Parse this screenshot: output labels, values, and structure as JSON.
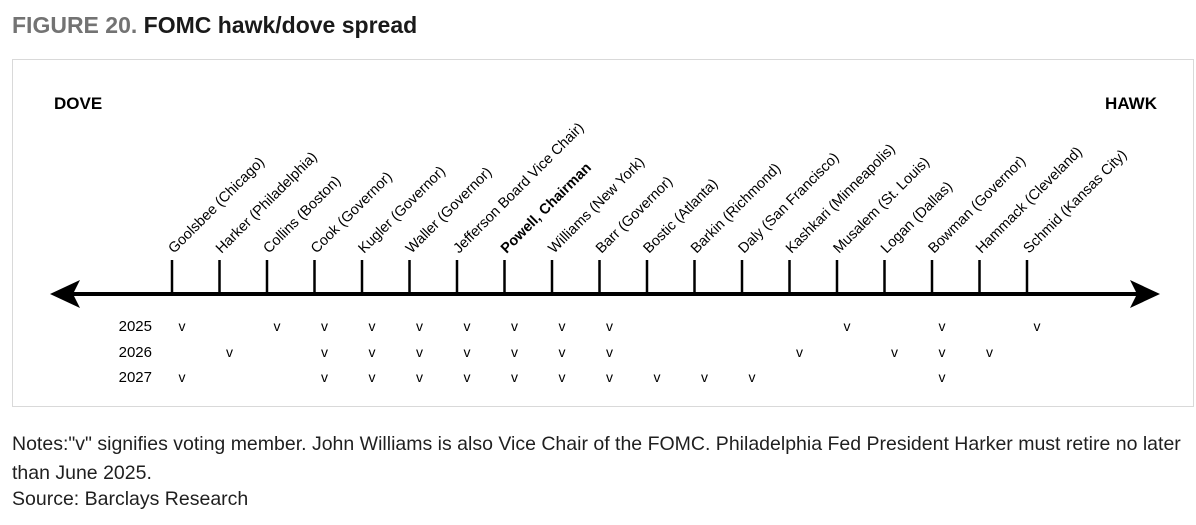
{
  "figure": {
    "label": "FIGURE 20.",
    "title": "FOMC hawk/dove spread"
  },
  "chart_data": {
    "type": "diagram",
    "left_label": "DOVE",
    "right_label": "HAWK",
    "years": [
      "2025",
      "2026",
      "2027"
    ],
    "vote_mark": "v",
    "members": [
      {
        "name": "Goolsbee (Chicago)",
        "bold": false,
        "votes": [
          "2025",
          "2027"
        ]
      },
      {
        "name": "Harker (Philadelphia)",
        "bold": false,
        "votes": [
          "2026"
        ]
      },
      {
        "name": "Collins (Boston)",
        "bold": false,
        "votes": [
          "2025"
        ]
      },
      {
        "name": "Cook (Governor)",
        "bold": false,
        "votes": [
          "2025",
          "2026",
          "2027"
        ]
      },
      {
        "name": "Kugler (Governor)",
        "bold": false,
        "votes": [
          "2025",
          "2026",
          "2027"
        ]
      },
      {
        "name": "Waller (Governor)",
        "bold": false,
        "votes": [
          "2025",
          "2026",
          "2027"
        ]
      },
      {
        "name": "Jefferson Board Vice Chair)",
        "bold": false,
        "votes": [
          "2025",
          "2026",
          "2027"
        ]
      },
      {
        "name": "Powell, Chairman",
        "bold": true,
        "votes": [
          "2025",
          "2026",
          "2027"
        ]
      },
      {
        "name": "Williams (New York)",
        "bold": false,
        "votes": [
          "2025",
          "2026",
          "2027"
        ]
      },
      {
        "name": "Barr (Governor)",
        "bold": false,
        "votes": [
          "2025",
          "2026",
          "2027"
        ]
      },
      {
        "name": "Bostic (Atlanta)",
        "bold": false,
        "votes": [
          "2027"
        ]
      },
      {
        "name": "Barkin (Richmond)",
        "bold": false,
        "votes": [
          "2027"
        ]
      },
      {
        "name": "Daly (San Francisco)",
        "bold": false,
        "votes": [
          "2027"
        ]
      },
      {
        "name": "Kashkari (Minneapolis)",
        "bold": false,
        "votes": [
          "2026"
        ]
      },
      {
        "name": "Musalem (St. Louis)",
        "bold": false,
        "votes": [
          "2025"
        ]
      },
      {
        "name": "Logan (Dallas)",
        "bold": false,
        "votes": [
          "2026"
        ]
      },
      {
        "name": "Bowman (Governor)",
        "bold": false,
        "votes": [
          "2025",
          "2026",
          "2027"
        ]
      },
      {
        "name": "Hammack (Cleveland)",
        "bold": false,
        "votes": [
          "2026"
        ]
      },
      {
        "name": "Schmid (Kansas City)",
        "bold": false,
        "votes": [
          "2025"
        ]
      }
    ]
  },
  "notes": "Notes:\"v\" signifies voting member. John Williams is also Vice Chair of the FOMC. Philadelphia Fed President Harker must retire no later than June 2025.",
  "source": "Source: Barclays Research"
}
